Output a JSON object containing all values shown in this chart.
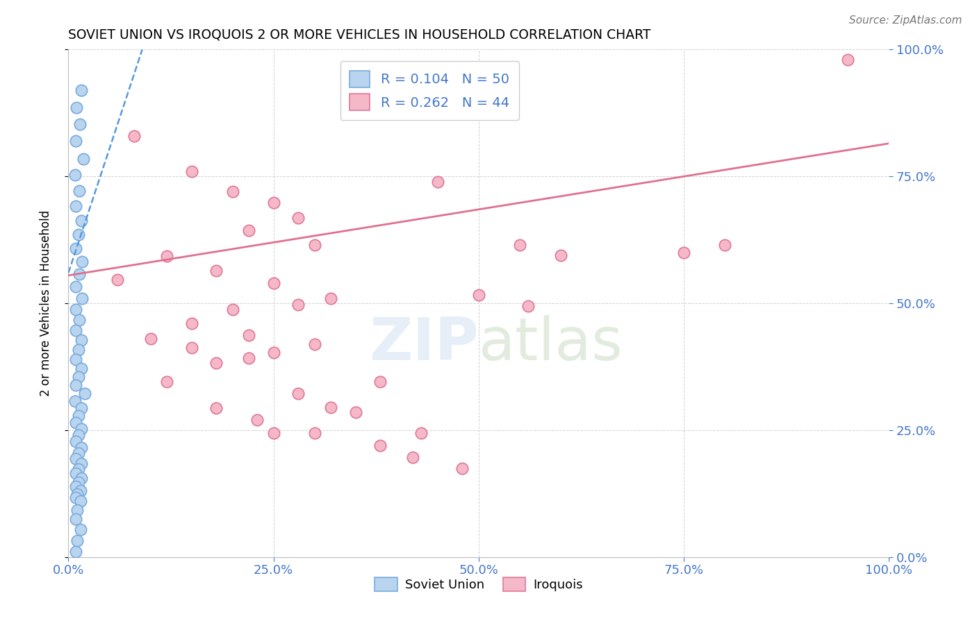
{
  "title": "SOVIET UNION VS IROQUOIS 2 OR MORE VEHICLES IN HOUSEHOLD CORRELATION CHART",
  "source": "Source: ZipAtlas.com",
  "ylabel": "2 or more Vehicles in Household",
  "xlim": [
    0.0,
    1.0
  ],
  "ylim": [
    0.0,
    1.0
  ],
  "xticks": [
    0.0,
    0.25,
    0.5,
    0.75,
    1.0
  ],
  "yticks": [
    0.0,
    0.25,
    0.5,
    0.75,
    1.0
  ],
  "xticklabels": [
    "0.0%",
    "25.0%",
    "50.0%",
    "75.0%",
    "100.0%"
  ],
  "yticklabels_right": [
    "0.0%",
    "25.0%",
    "50.0%",
    "75.0%",
    "100.0%"
  ],
  "blue_label": "Soviet Union",
  "pink_label": "Iroquois",
  "blue_R": "0.104",
  "blue_N": "50",
  "pink_R": "0.262",
  "pink_N": "44",
  "blue_face": "#b8d4ee",
  "blue_edge": "#7aabdd",
  "pink_face": "#f5b8c8",
  "pink_edge": "#e07898",
  "trend_blue": "#5599dd",
  "trend_pink": "#e07090",
  "watermark_color": "#dce8f4",
  "tick_color": "#4477cc",
  "grid_color": "#cccccc",
  "blue_scatter_x": [
    0.016,
    0.01,
    0.014,
    0.009,
    0.018,
    0.008,
    0.013,
    0.009,
    0.016,
    0.012,
    0.009,
    0.017,
    0.013,
    0.009,
    0.017,
    0.009,
    0.013,
    0.009,
    0.016,
    0.012,
    0.009,
    0.016,
    0.012,
    0.009,
    0.02,
    0.008,
    0.016,
    0.012,
    0.009,
    0.016,
    0.012,
    0.009,
    0.016,
    0.012,
    0.009,
    0.016,
    0.012,
    0.009,
    0.016,
    0.012,
    0.009,
    0.015,
    0.011,
    0.009,
    0.015,
    0.011,
    0.009,
    0.015,
    0.011,
    0.009
  ],
  "blue_scatter_y": [
    0.92,
    0.885,
    0.853,
    0.82,
    0.785,
    0.753,
    0.722,
    0.692,
    0.663,
    0.635,
    0.608,
    0.582,
    0.557,
    0.533,
    0.51,
    0.488,
    0.467,
    0.447,
    0.427,
    0.408,
    0.39,
    0.372,
    0.355,
    0.339,
    0.323,
    0.308,
    0.293,
    0.279,
    0.265,
    0.252,
    0.24,
    0.228,
    0.216,
    0.205,
    0.194,
    0.184,
    0.174,
    0.165,
    0.156,
    0.147,
    0.139,
    0.131,
    0.124,
    0.117,
    0.11,
    0.093,
    0.075,
    0.055,
    0.032,
    0.01
  ],
  "pink_scatter_x": [
    0.35,
    0.08,
    0.15,
    0.2,
    0.25,
    0.28,
    0.22,
    0.3,
    0.12,
    0.18,
    0.25,
    0.32,
    0.2,
    0.28,
    0.15,
    0.22,
    0.3,
    0.25,
    0.18,
    0.12,
    0.28,
    0.35,
    0.45,
    0.55,
    0.75,
    0.8,
    0.18,
    0.23,
    0.3,
    0.38,
    0.42,
    0.48,
    0.5,
    0.6,
    0.15,
    0.22,
    0.32,
    0.25,
    0.1,
    0.38,
    0.43,
    0.56,
    0.95,
    0.06
  ],
  "pink_scatter_y": [
    0.96,
    0.83,
    0.76,
    0.72,
    0.698,
    0.668,
    0.643,
    0.615,
    0.593,
    0.565,
    0.54,
    0.51,
    0.488,
    0.498,
    0.46,
    0.437,
    0.42,
    0.403,
    0.383,
    0.345,
    0.322,
    0.285,
    0.74,
    0.615,
    0.6,
    0.615,
    0.293,
    0.27,
    0.245,
    0.22,
    0.196,
    0.175,
    0.516,
    0.595,
    0.413,
    0.392,
    0.295,
    0.245,
    0.43,
    0.345,
    0.245,
    0.495,
    0.98,
    0.546
  ],
  "blue_trend_x_start": 0.0,
  "blue_trend_y_start": 0.56,
  "blue_trend_x_end": 0.09,
  "blue_trend_y_end": 1.0,
  "pink_trend_x_start": 0.0,
  "pink_trend_y_start": 0.555,
  "pink_trend_x_end": 1.0,
  "pink_trend_y_end": 0.815
}
